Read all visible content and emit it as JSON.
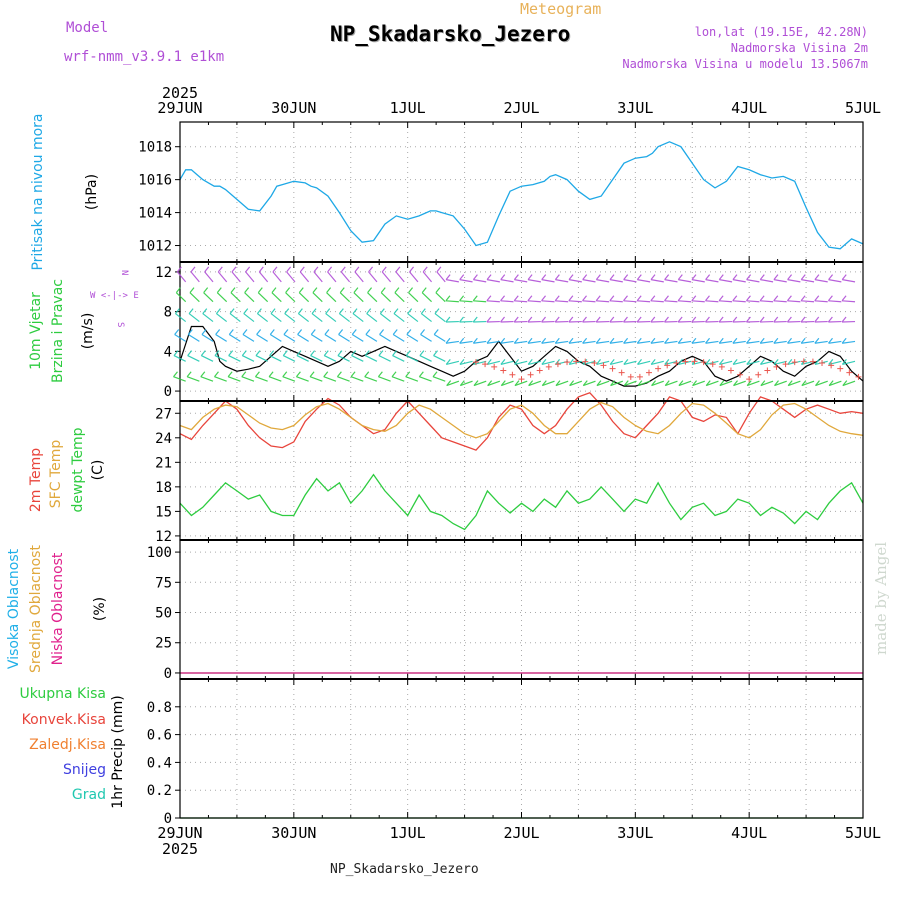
{
  "header": {
    "model_label": "Model",
    "model_name": "wrf-nmm_v3.9.1 e1km",
    "meteogram_label": "Meteogram",
    "station": "NP_Skadarsko_Jezero",
    "coords": "lon,lat (19.15E, 42.28N)",
    "elevation": "Nadmorska Visina 2m",
    "model_elevation": "Nadmorska Visina u modelu 13.5067m"
  },
  "footer": {
    "station": "NP_Skadarsko_Jezero",
    "watermark": "made by Angel"
  },
  "time_axis": {
    "labels": [
      "29JUN",
      "30JUN",
      "1JUL",
      "2JUL",
      "3JUL",
      "4JUL",
      "5JUL"
    ],
    "year": "2025"
  },
  "colors": {
    "pressure": "#1ea8e6",
    "temp2m": "#e8453c",
    "sfc_temp": "#e0a83c",
    "dewpoint": "#2ecc40",
    "high_cloud": "#20b0e8",
    "mid_cloud": "#e0a83c",
    "low_cloud": "#e0208c",
    "total_precip": "#2ecc40",
    "conv_precip": "#e8453c",
    "ice_precip": "#f08030",
    "snow": "#4040e0",
    "hail": "#20c8b0",
    "wind_compass": "#b04fd6"
  },
  "chart_data": [
    {
      "type": "line",
      "panel": "pressure",
      "title": "Pritisak na nivou mora",
      "ylabel": "(hPa)",
      "ylim": [
        1011,
        1019.5
      ],
      "yticks": [
        1012,
        1014,
        1016,
        1018
      ],
      "x_days": [
        0,
        0.05,
        0.1,
        0.15,
        0.2,
        0.25,
        0.3,
        0.35,
        0.4,
        0.5,
        0.6,
        0.7,
        0.8,
        0.85,
        0.9,
        1.0,
        1.1,
        1.15,
        1.2,
        1.3,
        1.4,
        1.5,
        1.6,
        1.7,
        1.8,
        1.9,
        2.0,
        2.1,
        2.2,
        2.25,
        2.3,
        2.4,
        2.5,
        2.6,
        2.7,
        2.8,
        2.9,
        3.0,
        3.1,
        3.2,
        3.25,
        3.3,
        3.4,
        3.5,
        3.6,
        3.7,
        3.8,
        3.9,
        4.0,
        4.1,
        4.15,
        4.2,
        4.3,
        4.4,
        4.5,
        4.6,
        4.7,
        4.8,
        4.9,
        5.0,
        5.1,
        5.2,
        5.3,
        5.4,
        5.5,
        5.6,
        5.7,
        5.8,
        5.9,
        6.0
      ],
      "values": [
        1016.0,
        1016.6,
        1016.6,
        1016.3,
        1016.0,
        1015.8,
        1015.6,
        1015.6,
        1015.4,
        1014.8,
        1014.2,
        1014.1,
        1015.0,
        1015.6,
        1015.7,
        1015.9,
        1015.8,
        1015.6,
        1015.5,
        1015.0,
        1014.0,
        1012.9,
        1012.2,
        1012.3,
        1013.3,
        1013.8,
        1013.6,
        1013.8,
        1014.1,
        1014.1,
        1014.0,
        1013.8,
        1013.0,
        1012.0,
        1012.2,
        1013.8,
        1015.3,
        1015.6,
        1015.7,
        1015.9,
        1016.2,
        1016.3,
        1016.0,
        1015.3,
        1014.8,
        1015.0,
        1016.0,
        1017.0,
        1017.3,
        1017.4,
        1017.6,
        1018.0,
        1018.3,
        1018.0,
        1017.0,
        1016.0,
        1015.5,
        1015.9,
        1016.8,
        1016.6,
        1016.3,
        1016.1,
        1016.2,
        1015.9,
        1014.3,
        1012.8,
        1011.9,
        1011.8,
        1012.4,
        1012.1
      ]
    },
    {
      "type": "line",
      "panel": "wind",
      "title": "10m Vjetar",
      "subtitle": "Brzina i Pravac",
      "ylabel": "(m/s)",
      "ylim": [
        -1,
        13
      ],
      "yticks": [
        0,
        4,
        8,
        12
      ],
      "series": [
        {
          "name": "speed",
          "x_days": [
            0,
            0.1,
            0.2,
            0.3,
            0.35,
            0.4,
            0.5,
            0.6,
            0.7,
            0.8,
            0.9,
            1.0,
            1.1,
            1.2,
            1.3,
            1.4,
            1.5,
            1.6,
            1.7,
            1.8,
            1.9,
            2.0,
            2.1,
            2.2,
            2.3,
            2.4,
            2.5,
            2.6,
            2.7,
            2.8,
            2.9,
            3.0,
            3.1,
            3.2,
            3.3,
            3.4,
            3.5,
            3.6,
            3.7,
            3.8,
            3.9,
            4.0,
            4.1,
            4.2,
            4.3,
            4.4,
            4.5,
            4.6,
            4.7,
            4.8,
            4.9,
            5.0,
            5.1,
            5.2,
            5.3,
            5.4,
            5.5,
            5.6,
            5.7,
            5.8,
            5.9,
            6.0
          ],
          "values": [
            3.0,
            6.5,
            6.5,
            5.0,
            3.0,
            2.5,
            2.0,
            2.2,
            2.5,
            3.5,
            4.5,
            4.0,
            3.5,
            3.0,
            2.5,
            3.0,
            4.0,
            3.5,
            4.0,
            4.5,
            4.0,
            3.5,
            3.0,
            2.5,
            2.0,
            1.5,
            2.0,
            3.0,
            3.5,
            5.0,
            3.5,
            2.0,
            2.5,
            3.5,
            4.5,
            4.0,
            3.0,
            2.5,
            1.5,
            1.0,
            0.5,
            0.5,
            0.8,
            1.5,
            2.0,
            3.0,
            3.5,
            3.0,
            1.5,
            1.0,
            1.5,
            2.5,
            3.5,
            3.0,
            2.0,
            1.5,
            2.5,
            3.0,
            4.0,
            3.5,
            2.0,
            1.0
          ]
        }
      ]
    },
    {
      "type": "line",
      "panel": "temperature",
      "title": "2m Temp",
      "subtitle": "SFC Temp",
      "title3": "dewpt Temp",
      "ylabel": "(C)",
      "ylim": [
        11.5,
        28.5
      ],
      "yticks": [
        12,
        15,
        18,
        21,
        24,
        27
      ],
      "series": [
        {
          "name": "2m Temp",
          "x_days": [
            0,
            0.1,
            0.2,
            0.3,
            0.4,
            0.5,
            0.6,
            0.7,
            0.8,
            0.9,
            1.0,
            1.1,
            1.2,
            1.3,
            1.4,
            1.5,
            1.6,
            1.7,
            1.8,
            1.9,
            2.0,
            2.1,
            2.2,
            2.3,
            2.4,
            2.5,
            2.6,
            2.7,
            2.8,
            2.9,
            3.0,
            3.1,
            3.2,
            3.3,
            3.4,
            3.5,
            3.6,
            3.7,
            3.8,
            3.9,
            4.0,
            4.1,
            4.2,
            4.3,
            4.4,
            4.5,
            4.6,
            4.7,
            4.8,
            4.9,
            5.0,
            5.1,
            5.2,
            5.3,
            5.4,
            5.5,
            5.6,
            5.7,
            5.8,
            5.9,
            6.0
          ],
          "values": [
            24.5,
            23.8,
            25.5,
            27.0,
            28.5,
            27.5,
            25.5,
            24.0,
            23.0,
            22.8,
            23.5,
            26.0,
            27.5,
            28.8,
            28.0,
            26.5,
            25.5,
            24.5,
            25.0,
            27.0,
            28.5,
            27.0,
            25.5,
            24.0,
            23.5,
            23.0,
            22.5,
            24.0,
            26.5,
            28.0,
            27.5,
            25.5,
            24.5,
            25.5,
            27.5,
            29.0,
            29.5,
            28.0,
            26.0,
            24.5,
            24.0,
            25.5,
            27.0,
            29.0,
            28.5,
            26.5,
            26.0,
            26.8,
            26.5,
            24.5,
            27.0,
            29.0,
            28.5,
            27.5,
            26.5,
            27.5,
            28.0,
            27.5,
            27.0,
            27.2,
            27.0
          ]
        },
        {
          "name": "SFC Temp",
          "x_days": [
            0,
            0.1,
            0.2,
            0.3,
            0.4,
            0.5,
            0.6,
            0.7,
            0.8,
            0.9,
            1.0,
            1.1,
            1.2,
            1.3,
            1.4,
            1.5,
            1.6,
            1.7,
            1.8,
            1.9,
            2.0,
            2.1,
            2.2,
            2.3,
            2.4,
            2.5,
            2.6,
            2.7,
            2.8,
            2.9,
            3.0,
            3.1,
            3.2,
            3.3,
            3.4,
            3.5,
            3.6,
            3.7,
            3.8,
            3.9,
            4.0,
            4.1,
            4.2,
            4.3,
            4.4,
            4.5,
            4.6,
            4.7,
            4.8,
            4.9,
            5.0,
            5.1,
            5.2,
            5.3,
            5.4,
            5.5,
            5.6,
            5.7,
            5.8,
            5.9,
            6.0
          ],
          "values": [
            25.5,
            25.0,
            26.5,
            27.5,
            28.0,
            27.8,
            26.8,
            25.8,
            25.2,
            25.0,
            25.5,
            26.8,
            27.8,
            28.2,
            27.5,
            26.5,
            25.5,
            25.0,
            24.8,
            25.5,
            27.0,
            28.0,
            27.5,
            26.5,
            25.5,
            24.5,
            24.0,
            24.5,
            26.0,
            27.5,
            28.0,
            27.0,
            25.5,
            24.5,
            24.5,
            26.0,
            27.5,
            28.3,
            27.8,
            26.5,
            25.5,
            24.8,
            24.5,
            25.5,
            27.0,
            28.2,
            28.0,
            27.0,
            25.8,
            24.5,
            24.0,
            25.0,
            26.8,
            28.0,
            28.2,
            27.5,
            26.5,
            25.5,
            24.8,
            24.5,
            24.3
          ]
        },
        {
          "name": "dewpt Temp",
          "x_days": [
            0,
            0.1,
            0.2,
            0.3,
            0.4,
            0.5,
            0.6,
            0.7,
            0.8,
            0.9,
            1.0,
            1.1,
            1.2,
            1.3,
            1.4,
            1.5,
            1.6,
            1.7,
            1.8,
            1.9,
            2.0,
            2.1,
            2.2,
            2.3,
            2.4,
            2.5,
            2.6,
            2.7,
            2.8,
            2.9,
            3.0,
            3.1,
            3.2,
            3.3,
            3.4,
            3.5,
            3.6,
            3.7,
            3.8,
            3.9,
            4.0,
            4.1,
            4.2,
            4.3,
            4.4,
            4.5,
            4.6,
            4.7,
            4.8,
            4.9,
            5.0,
            5.1,
            5.2,
            5.3,
            5.4,
            5.5,
            5.6,
            5.7,
            5.8,
            5.9,
            6.0
          ],
          "values": [
            16.0,
            14.5,
            15.5,
            17.0,
            18.5,
            17.5,
            16.5,
            17.0,
            15.0,
            14.5,
            14.5,
            17.0,
            19.0,
            17.5,
            18.5,
            16.0,
            17.5,
            19.5,
            17.5,
            16.0,
            14.5,
            17.0,
            15.0,
            14.5,
            13.5,
            12.8,
            14.5,
            17.5,
            16.0,
            14.8,
            16.0,
            15.0,
            16.5,
            15.5,
            17.5,
            16.0,
            16.5,
            18.0,
            16.5,
            15.0,
            16.5,
            16.0,
            18.5,
            16.0,
            14.0,
            15.5,
            16.0,
            14.5,
            15.0,
            16.5,
            16.0,
            14.5,
            15.5,
            14.8,
            13.5,
            15.0,
            14.0,
            16.0,
            17.5,
            18.5,
            16.0
          ]
        }
      ]
    },
    {
      "type": "line",
      "panel": "cloud",
      "title": "Visoka Oblacnost",
      "subtitle": "Srednja Oblacnost",
      "title3": "Niska Oblacnost",
      "ylabel": "(%)",
      "ylim": [
        -5,
        110
      ],
      "yticks": [
        0,
        25,
        50,
        75,
        100
      ],
      "series": [
        {
          "name": "Visoka Oblacnost",
          "x_days": [
            0,
            6
          ],
          "values": [
            0,
            0
          ]
        },
        {
          "name": "Srednja Oblacnost",
          "x_days": [
            0,
            6
          ],
          "values": [
            0,
            0
          ]
        },
        {
          "name": "Niska Oblacnost",
          "x_days": [
            0,
            6
          ],
          "values": [
            0,
            0
          ]
        }
      ]
    },
    {
      "type": "line",
      "panel": "precip",
      "title": "Ukupna Kisa",
      "subtitle": "Konvek.Kisa",
      "title3": "Zaledj.Kisa",
      "title4": "Snijeg",
      "title5": "Grad",
      "ylabel": "1hr Precip (mm)",
      "ylim": [
        0,
        1.0
      ],
      "yticks": [
        0,
        0.2,
        0.4,
        0.6,
        0.8
      ],
      "series": [
        {
          "name": "Ukupna Kisa",
          "x_days": [
            0,
            6
          ],
          "values": [
            0,
            0
          ]
        }
      ]
    }
  ]
}
